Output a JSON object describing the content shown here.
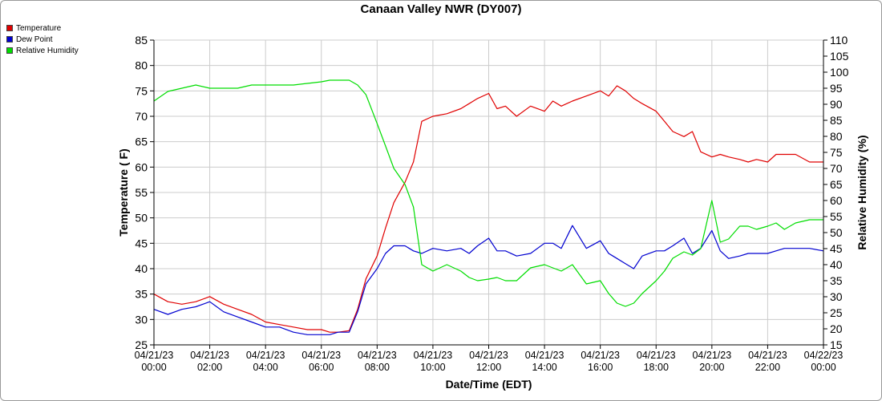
{
  "chart_data": {
    "type": "line",
    "title": "Canaan Valley NWR (DY007)",
    "xlabel": "Date/Time (EDT)",
    "ylabel": "Temperature ( F)",
    "y2label": "Relative Humidity (%)",
    "ylim": [
      25,
      85
    ],
    "y2lim": [
      15,
      110
    ],
    "yticks": [
      25,
      30,
      35,
      40,
      45,
      50,
      55,
      60,
      65,
      70,
      75,
      80,
      85
    ],
    "y2ticks": [
      15,
      20,
      25,
      30,
      35,
      40,
      45,
      50,
      55,
      60,
      65,
      70,
      75,
      80,
      85,
      90,
      95,
      100,
      105,
      110
    ],
    "xlim_hours": [
      0,
      24
    ],
    "xticks": [
      {
        "h": 0,
        "date": "04/21/23",
        "time": "00:00"
      },
      {
        "h": 2,
        "date": "04/21/23",
        "time": "02:00"
      },
      {
        "h": 4,
        "date": "04/21/23",
        "time": "04:00"
      },
      {
        "h": 6,
        "date": "04/21/23",
        "time": "06:00"
      },
      {
        "h": 8,
        "date": "04/21/23",
        "time": "08:00"
      },
      {
        "h": 10,
        "date": "04/21/23",
        "time": "10:00"
      },
      {
        "h": 12,
        "date": "04/21/23",
        "time": "12:00"
      },
      {
        "h": 14,
        "date": "04/21/23",
        "time": "14:00"
      },
      {
        "h": 16,
        "date": "04/21/23",
        "time": "16:00"
      },
      {
        "h": 18,
        "date": "04/21/23",
        "time": "18:00"
      },
      {
        "h": 20,
        "date": "04/21/23",
        "time": "20:00"
      },
      {
        "h": 22,
        "date": "04/21/23",
        "time": "22:00"
      },
      {
        "h": 24,
        "date": "04/22/23",
        "time": "00:00"
      }
    ],
    "grid": true,
    "legend_position": "top-left",
    "series": [
      {
        "name": "Temperature",
        "axis": "left",
        "color": "#e00000",
        "x": [
          0,
          0.5,
          1,
          1.5,
          2,
          2.5,
          3,
          3.5,
          4,
          4.5,
          5,
          5.5,
          6,
          6.3,
          6.6,
          7,
          7.3,
          7.6,
          8,
          8.3,
          8.6,
          9,
          9.3,
          9.6,
          10,
          10.5,
          11,
          11.3,
          11.6,
          12,
          12.3,
          12.6,
          13,
          13.5,
          14,
          14.3,
          14.6,
          15,
          15.5,
          16,
          16.3,
          16.6,
          16.9,
          17.2,
          17.5,
          18,
          18.3,
          18.6,
          19,
          19.3,
          19.6,
          20,
          20.3,
          20.6,
          21,
          21.3,
          21.6,
          22,
          22.3,
          22.6,
          23,
          23.5,
          24
        ],
        "values": [
          35,
          33.5,
          33,
          33.5,
          34.5,
          33,
          32,
          31,
          29.5,
          29,
          28.5,
          28,
          28,
          27.5,
          27.5,
          27.8,
          32,
          38,
          42.5,
          48,
          53,
          57,
          61,
          69,
          70,
          70.5,
          71.5,
          72.5,
          73.5,
          74.5,
          71.5,
          72,
          70,
          72,
          71,
          73,
          72,
          73,
          74,
          75,
          74,
          76,
          75,
          73.5,
          72.5,
          71,
          69,
          67,
          66,
          67,
          63,
          62,
          62.5,
          62,
          61.5,
          61,
          61.5,
          61,
          62.5,
          62.5,
          62.5,
          61,
          61
        ]
      },
      {
        "name": "Dew Point",
        "axis": "left",
        "color": "#0000d0",
        "x": [
          0,
          0.5,
          1,
          1.5,
          2,
          2.5,
          3,
          3.5,
          4,
          4.5,
          5,
          5.5,
          6,
          6.3,
          6.6,
          7,
          7.3,
          7.6,
          8,
          8.3,
          8.6,
          9,
          9.3,
          9.6,
          10,
          10.5,
          11,
          11.3,
          11.6,
          12,
          12.3,
          12.6,
          13,
          13.5,
          14,
          14.3,
          14.6,
          15,
          15.5,
          16,
          16.3,
          16.6,
          16.9,
          17.2,
          17.5,
          18,
          18.3,
          18.6,
          19,
          19.3,
          19.6,
          20,
          20.3,
          20.6,
          21,
          21.3,
          21.6,
          22,
          22.3,
          22.6,
          23,
          23.5,
          24
        ],
        "values": [
          32,
          31,
          32,
          32.5,
          33.5,
          31.5,
          30.5,
          29.5,
          28.5,
          28.5,
          27.5,
          27,
          27,
          27,
          27.5,
          27.5,
          31.5,
          37,
          40,
          43,
          44.5,
          44.5,
          43.5,
          43,
          44,
          43.5,
          44,
          43,
          44.5,
          46,
          43.5,
          43.5,
          42.5,
          43,
          45,
          45,
          44,
          48.5,
          44,
          45.5,
          43,
          42,
          41,
          40,
          42.5,
          43.5,
          43.5,
          44.5,
          46,
          43,
          44,
          47.5,
          43.5,
          42,
          42.5,
          43,
          43,
          43,
          43.5,
          44,
          44,
          44,
          43.5
        ]
      },
      {
        "name": "Relative Humidity",
        "axis": "right",
        "color": "#00dd00",
        "x": [
          0,
          0.5,
          1,
          1.5,
          2,
          2.5,
          3,
          3.5,
          4,
          4.5,
          5,
          5.5,
          6,
          6.3,
          6.6,
          7,
          7.3,
          7.6,
          8,
          8.3,
          8.6,
          9,
          9.3,
          9.6,
          10,
          10.5,
          11,
          11.3,
          11.6,
          12,
          12.3,
          12.6,
          13,
          13.5,
          14,
          14.3,
          14.6,
          15,
          15.5,
          16,
          16.3,
          16.6,
          16.9,
          17.2,
          17.5,
          18,
          18.3,
          18.6,
          19,
          19.3,
          19.6,
          20,
          20.3,
          20.6,
          21,
          21.3,
          21.6,
          22,
          22.3,
          22.6,
          23,
          23.5,
          24
        ],
        "values": [
          91,
          94,
          95,
          96,
          95,
          95,
          95,
          96,
          96,
          96,
          96,
          96.5,
          97,
          97.5,
          97.5,
          97.5,
          96,
          93,
          84,
          77,
          70,
          65,
          58,
          40,
          38,
          40,
          38,
          36,
          35,
          35.5,
          36,
          35,
          35,
          39,
          40,
          39,
          38,
          40,
          34,
          35,
          31,
          28,
          27,
          28,
          31,
          35,
          38,
          42,
          44,
          43,
          45,
          60,
          47,
          48,
          52,
          52,
          51,
          52,
          53,
          51,
          53,
          54,
          54
        ]
      }
    ]
  }
}
